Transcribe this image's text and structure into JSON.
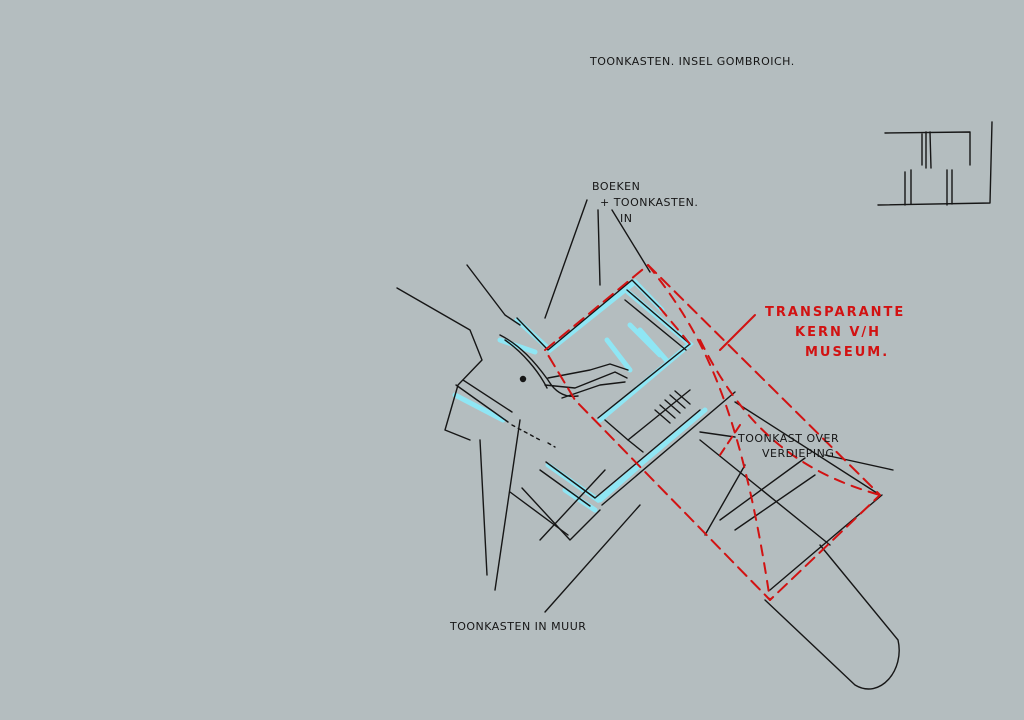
{
  "annotations": {
    "title": "Toonkasten. Insel Gombroich.",
    "boeken_line1": "Boeken",
    "boeken_line2": "+ toonkasten.",
    "boeken_line3": "in",
    "transparante_line1": "Transparante",
    "transparante_line2": "kern v/h",
    "transparante_line3": "museum.",
    "toonkast_line1": "Toonkast over",
    "toonkast_line2": "verdieping",
    "bottom": "Toonkasten in muur"
  },
  "colors": {
    "paper": "#b4bdbf",
    "ink": "#161616",
    "cyan": "#8fe6f4",
    "red": "#d21212"
  }
}
